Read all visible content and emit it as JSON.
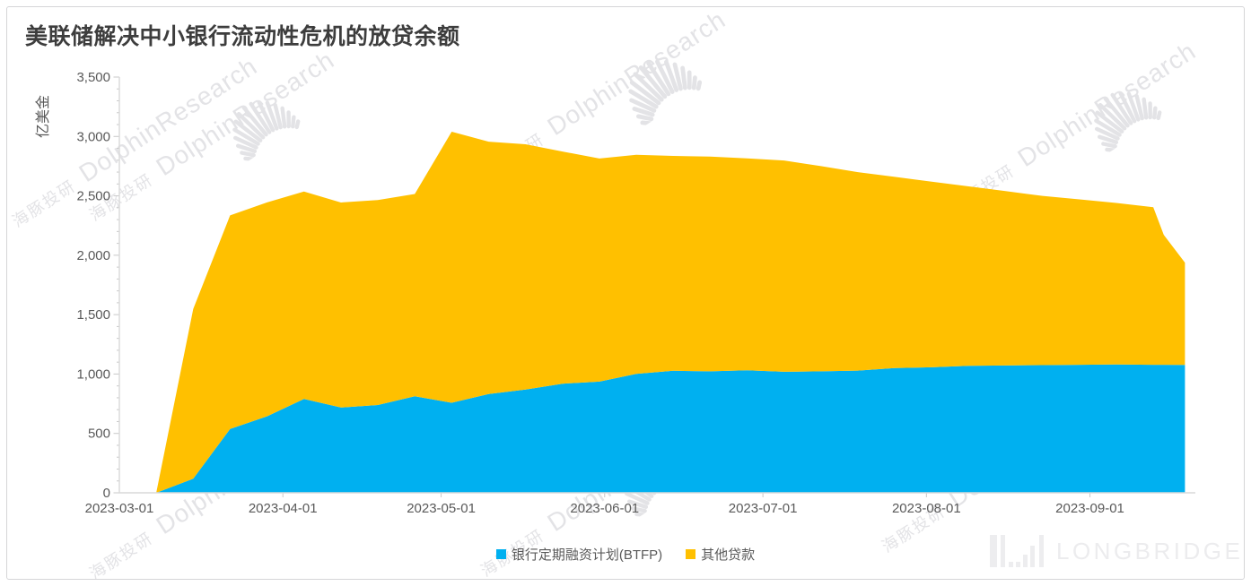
{
  "title": "美联储解决中小银行流动性危机的放贷余额",
  "y_axis": {
    "title": "亿美金",
    "tick_labels": [
      "0",
      "500",
      "1,000",
      "1,500",
      "2,000",
      "2,500",
      "3,000",
      "3,500"
    ],
    "tick_values": [
      0,
      500,
      1000,
      1500,
      2000,
      2500,
      3000,
      3500
    ],
    "minor_step": 100
  },
  "x_axis": {
    "tick_labels": [
      "2023-03-01",
      "2023-04-01",
      "2023-05-01",
      "2023-06-01",
      "2023-07-01",
      "2023-08-01",
      "2023-09-01"
    ]
  },
  "legend": {
    "items": [
      {
        "label": "银行定期融资计划(BTFP)",
        "color": "#00b0f0"
      },
      {
        "label": "其他贷款",
        "color": "#ffc000"
      }
    ]
  },
  "watermark": {
    "cn": "海豚投研",
    "en": "DolphinResearch"
  },
  "logo": {
    "text": "LONGBRIDGE"
  },
  "colors": {
    "btfp_blue": "#00b0f0",
    "other_gold": "#ffc000",
    "axis_line": "#d9d9d9",
    "tick": "#c8c8c8",
    "label": "#595959"
  },
  "chart_data": {
    "type": "area",
    "stacked": true,
    "title": "美联储解决中小银行流动性危机的放贷余额",
    "xlabel": "",
    "ylabel": "亿美金",
    "ylim": [
      0,
      3500
    ],
    "grid": false,
    "legend_position": "bottom",
    "x": [
      "2023-03-01",
      "2023-03-08",
      "2023-03-15",
      "2023-03-22",
      "2023-03-29",
      "2023-04-05",
      "2023-04-12",
      "2023-04-19",
      "2023-04-26",
      "2023-05-03",
      "2023-05-10",
      "2023-05-17",
      "2023-05-24",
      "2023-05-31",
      "2023-06-07",
      "2023-06-14",
      "2023-06-21",
      "2023-06-28",
      "2023-07-05",
      "2023-07-12",
      "2023-07-19",
      "2023-07-26",
      "2023-08-02",
      "2023-08-09",
      "2023-08-16",
      "2023-08-23",
      "2023-08-30",
      "2023-09-06",
      "2023-09-13",
      "2023-09-15",
      "2023-09-19"
    ],
    "series": [
      {
        "name": "银行定期融资计划(BTFP)",
        "color": "#00b0f0",
        "values": [
          0,
          0,
          119,
          537,
          644,
          790,
          718,
          739,
          813,
          758,
          831,
          870,
          919,
          936,
          1002,
          1027,
          1023,
          1031,
          1019,
          1023,
          1029,
          1051,
          1057,
          1069,
          1072,
          1075,
          1078,
          1080,
          1078,
          1078,
          1077
        ]
      },
      {
        "name": "其他贷款",
        "color": "#ffc000",
        "values": [
          0,
          0,
          1428,
          1798,
          1801,
          1746,
          1726,
          1726,
          1703,
          2282,
          2125,
          2064,
          1954,
          1878,
          1843,
          1809,
          1807,
          1784,
          1779,
          1727,
          1671,
          1609,
          1563,
          1511,
          1468,
          1425,
          1392,
          1360,
          1327,
          1094,
          861
        ]
      }
    ]
  }
}
